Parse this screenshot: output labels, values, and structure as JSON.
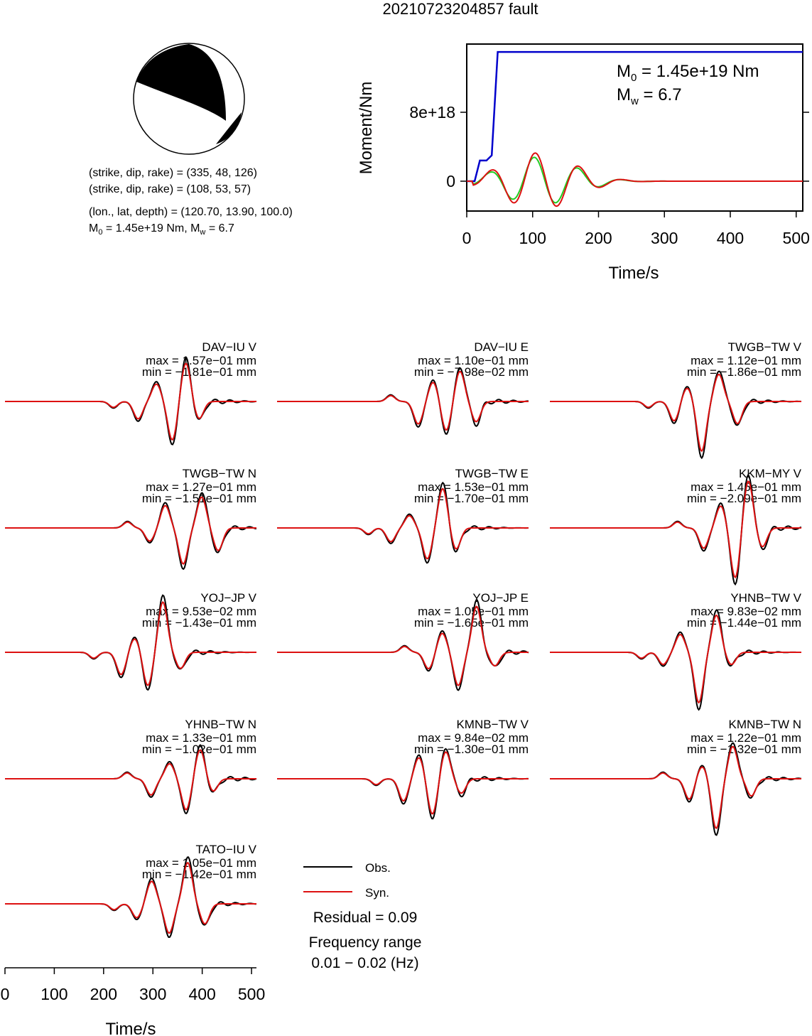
{
  "title": "20210723204857 fault",
  "mechanism": {
    "lines": [
      "(strike, dip, rake) = (335, 48, 126)",
      "(strike, dip, rake) = (108, 53, 57)",
      "(lon., lat, depth) = (120.70, 13.90, 100.0)"
    ],
    "moment_line": {
      "m0": "M",
      "m0_sub": "0",
      "m0_val": " = 1.45e+19 Nm, M",
      "mw_sub": "w",
      "mw_val": " = 6.7"
    }
  },
  "colors": {
    "obs": "#000000",
    "syn": "#dd1111",
    "moment": "#0000cc",
    "green": "#22cc22"
  },
  "chart_data": [
    {
      "type": "line",
      "name": "moment-rate",
      "xlabel": "Time/s",
      "ylabel": "Moment/Nm",
      "xlim": [
        0,
        510
      ],
      "xticks": [
        "0",
        "100",
        "200",
        "300",
        "400",
        "500"
      ],
      "yticks": [
        "0",
        "8e+18"
      ],
      "annotation": {
        "m0": "M",
        "m0_sub": "0",
        "m0_text": " = 1.45e+19 Nm",
        "mw": "M",
        "mw_sub": "w",
        "mw_text": " = 6.7"
      },
      "series": [
        {
          "x": [
            0,
            12,
            20,
            30,
            38,
            47,
            55,
            510
          ],
          "y": [
            0,
            0,
            2.4e+18,
            2.4e+18,
            3e+18,
            1.5e+19,
            1.5e+19,
            1.5e+19
          ]
        }
      ]
    },
    {
      "type": "line",
      "name": "waveforms",
      "xlabel": "Time/s",
      "xlim": [
        0,
        510
      ],
      "xticks": [
        "0",
        "100",
        "200",
        "300",
        "400",
        "500"
      ],
      "legend": [
        "Obs.",
        "Syn."
      ],
      "residual": "Residual = 0.09",
      "frequency": [
        "Frequency range",
        "0.01 − 0.02 (Hz)"
      ],
      "stations": [
        {
          "name": "DAV−IU V",
          "max": "max = 1.57e−01 mm",
          "min": "min = −1.81e−01 mm"
        },
        {
          "name": "DAV−IU E",
          "max": "max = 1.10e−01 mm",
          "min": "min = −7.98e−02 mm"
        },
        {
          "name": "TWGB−TW V",
          "max": "max = 1.12e−01 mm",
          "min": "min = −1.86e−01 mm"
        },
        {
          "name": "TWGB−TW N",
          "max": "max = 1.27e−01 mm",
          "min": "min = −1.51e−01 mm"
        },
        {
          "name": "TWGB−TW E",
          "max": "max = 1.53e−01 mm",
          "min": "min = −1.70e−01 mm"
        },
        {
          "name": "KKM−MY V",
          "max": "max = 1.45e−01 mm",
          "min": "min = −2.09e−01 mm"
        },
        {
          "name": "YOJ−JP V",
          "max": "max = 9.53e−02 mm",
          "min": "min = −1.43e−01 mm"
        },
        {
          "name": "YOJ−JP E",
          "max": "max = 1.05e−01 mm",
          "min": "min = −1.65e−01 mm"
        },
        {
          "name": "YHNB−TW V",
          "max": "max = 9.83e−02 mm",
          "min": "min = −1.44e−01 mm"
        },
        {
          "name": "YHNB−TW N",
          "max": "max = 1.33e−01 mm",
          "min": "min = −1.02e−01 mm"
        },
        {
          "name": "KMNB−TW V",
          "max": "max = 9.84e−02 mm",
          "min": "min = −1.30e−01 mm"
        },
        {
          "name": "KMNB−TW N",
          "max": "max = 1.22e−01 mm",
          "min": "min = −1.32e−01 mm"
        },
        {
          "name": "TATO−IU V",
          "max": "max = 1.05e−01 mm",
          "min": "min = −1.42e−01 mm"
        }
      ]
    }
  ]
}
